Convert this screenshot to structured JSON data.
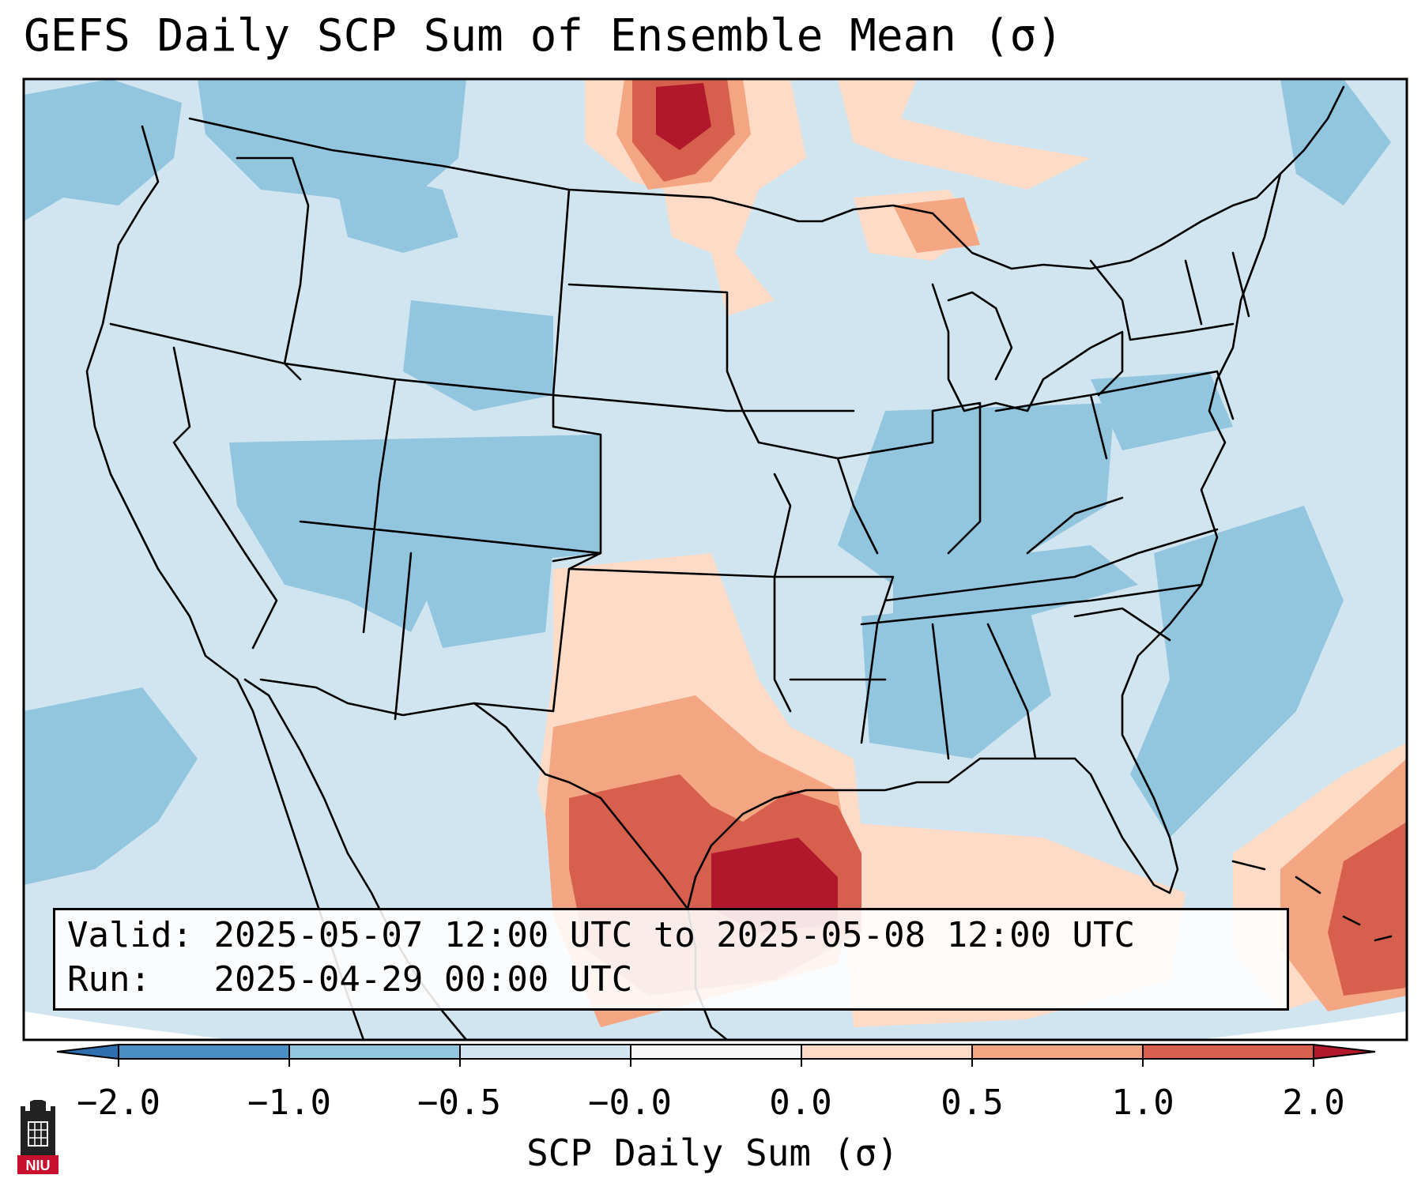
{
  "title": "GEFS Daily SCP Sum of Ensemble Mean (σ)",
  "info": {
    "valid_label": "Valid:",
    "valid_value": "2025-05-07 12:00 UTC to 2025-05-08 12:00 UTC",
    "run_label": "Run:",
    "run_value": "2025-04-29 00:00 UTC"
  },
  "colorbar": {
    "label": "SCP Daily Sum (σ)",
    "ticks": [
      "−2.0",
      "−1.0",
      "−0.5",
      "−0.0",
      "0.0",
      "0.5",
      "1.0",
      "2.0"
    ],
    "colors": [
      "#4a8fc4",
      "#92c5de",
      "#d1e5f0",
      "#f7f7f7",
      "#fddbc7",
      "#f4a582",
      "#d6604d"
    ],
    "extend_low_color": "#2f6fb0",
    "extend_high_color": "#b2182b"
  },
  "map": {
    "background_color": "#d1e5f0",
    "blue_color": "#92c5de",
    "peach_color": "#fddbc7",
    "salmon_color": "#f4a582",
    "red_color": "#d6604d",
    "darkred_color": "#b2182b",
    "boundary_color": "#000000"
  },
  "logo": {
    "text": "NIU"
  }
}
